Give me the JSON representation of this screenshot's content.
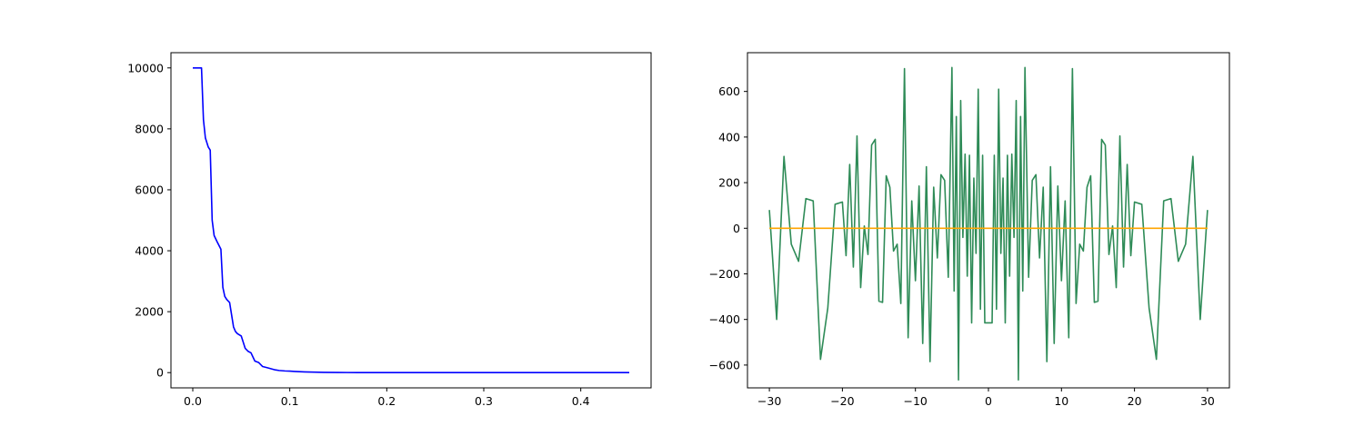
{
  "chart_data": [
    {
      "type": "line",
      "title": "",
      "xlabel": "",
      "ylabel": "",
      "xlim": [
        -0.0225,
        0.4725
      ],
      "ylim": [
        -500,
        10500
      ],
      "x_ticks": [
        0.0,
        0.1,
        0.2,
        0.3,
        0.4
      ],
      "x_tick_labels": [
        "0.0",
        "0.1",
        "0.2",
        "0.3",
        "0.4"
      ],
      "y_ticks": [
        0,
        2000,
        4000,
        6000,
        8000,
        10000
      ],
      "y_tick_labels": [
        "0",
        "2000",
        "4000",
        "6000",
        "8000",
        "10000"
      ],
      "grid": false,
      "series": [
        {
          "color": "#0000ff",
          "x": [
            0.0,
            0.009,
            0.011,
            0.013,
            0.016,
            0.018,
            0.02,
            0.022,
            0.025,
            0.029,
            0.031,
            0.033,
            0.035,
            0.038,
            0.042,
            0.044,
            0.046,
            0.05,
            0.054,
            0.057,
            0.06,
            0.064,
            0.068,
            0.072,
            0.077,
            0.085,
            0.089,
            0.095,
            0.1,
            0.105,
            0.115,
            0.125,
            0.135,
            0.15,
            0.17,
            0.2,
            0.25,
            0.3,
            0.35,
            0.4,
            0.45
          ],
          "y": [
            10000,
            10000,
            8300,
            7700,
            7400,
            7300,
            5000,
            4500,
            4300,
            4050,
            2800,
            2500,
            2400,
            2300,
            1500,
            1350,
            1280,
            1200,
            800,
            700,
            650,
            380,
            330,
            200,
            160,
            90,
            70,
            55,
            50,
            40,
            25,
            15,
            8,
            4,
            2,
            1,
            0,
            0,
            0,
            0,
            0
          ]
        }
      ]
    },
    {
      "type": "line",
      "title": "",
      "xlabel": "",
      "ylabel": "",
      "xlim": [
        -33,
        33
      ],
      "ylim": [
        -700,
        770
      ],
      "x_ticks": [
        -30,
        -20,
        -10,
        0,
        10,
        20,
        30
      ],
      "x_tick_labels": [
        "−30",
        "−20",
        "−10",
        "0",
        "10",
        "20",
        "30"
      ],
      "y_ticks": [
        -600,
        -400,
        -200,
        0,
        200,
        400,
        600
      ],
      "y_tick_labels": [
        "−600",
        "−400",
        "−200",
        "0",
        "200",
        "400",
        "600"
      ],
      "grid": false,
      "series": [
        {
          "color": "#2e8b57",
          "x": [
            -30,
            -29,
            -28,
            -27,
            -26,
            -25,
            -24,
            -23,
            -22,
            -21,
            -20,
            -19.5,
            -19,
            -18.5,
            -18,
            -17.5,
            -17,
            -16.5,
            -16,
            -15.5,
            -15,
            -14.5,
            -14,
            -13.5,
            -13,
            -12.5,
            -12,
            -11.5,
            -11,
            -10.5,
            -10,
            -9.5,
            -9,
            -8.5,
            -8,
            -7.5,
            -7,
            -6.5,
            -6,
            -5.5,
            -5,
            -4.7,
            -4.4,
            -4.1,
            -3.8,
            -3.5,
            -3.2,
            -2.9,
            -2.6,
            -2.3,
            -2.0,
            -1.7,
            -1.4,
            -1.1,
            -0.8,
            -0.5,
            0.5,
            0.8,
            1.1,
            1.4,
            1.7,
            2.0,
            2.3,
            2.6,
            2.9,
            3.2,
            3.5,
            3.8,
            4.1,
            4.4,
            4.7,
            5.0,
            5.5,
            6.0,
            6.5,
            7.0,
            7.5,
            8.0,
            8.5,
            9.0,
            9.5,
            10.0,
            10.5,
            11.0,
            11.5,
            12.0,
            12.5,
            13.0,
            13.5,
            14.0,
            14.5,
            15.0,
            15.5,
            16.0,
            16.5,
            17.0,
            17.5,
            18.0,
            18.5,
            19.0,
            19.5,
            20.0,
            21,
            22,
            23,
            24,
            25,
            26,
            27,
            28,
            29,
            30
          ],
          "y": [
            80,
            -400,
            315,
            -70,
            -145,
            130,
            120,
            -575,
            -350,
            105,
            115,
            -120,
            280,
            -170,
            405,
            -260,
            10,
            -115,
            365,
            390,
            -320,
            -325,
            230,
            180,
            -100,
            -70,
            -330,
            700,
            -480,
            120,
            -230,
            185,
            -505,
            270,
            -585,
            180,
            -130,
            235,
            210,
            -215,
            705,
            -275,
            490,
            -665,
            560,
            -40,
            325,
            -210,
            320,
            -415,
            220,
            -110,
            610,
            -355,
            320,
            -415,
            -415,
            320,
            -355,
            610,
            -110,
            220,
            -415,
            320,
            -210,
            325,
            -40,
            560,
            -665,
            490,
            -275,
            705,
            -215,
            210,
            235,
            -130,
            180,
            -585,
            270,
            -505,
            185,
            -230,
            120,
            -480,
            700,
            -330,
            -70,
            -100,
            180,
            230,
            -325,
            -320,
            390,
            365,
            -115,
            10,
            -260,
            405,
            -170,
            280,
            -120,
            115,
            105,
            -350,
            -575,
            120,
            130,
            -145,
            -70,
            315,
            -400,
            80
          ]
        },
        {
          "color": "#ffa500",
          "x": [
            -30,
            30
          ],
          "y": [
            0,
            0
          ]
        }
      ]
    }
  ]
}
